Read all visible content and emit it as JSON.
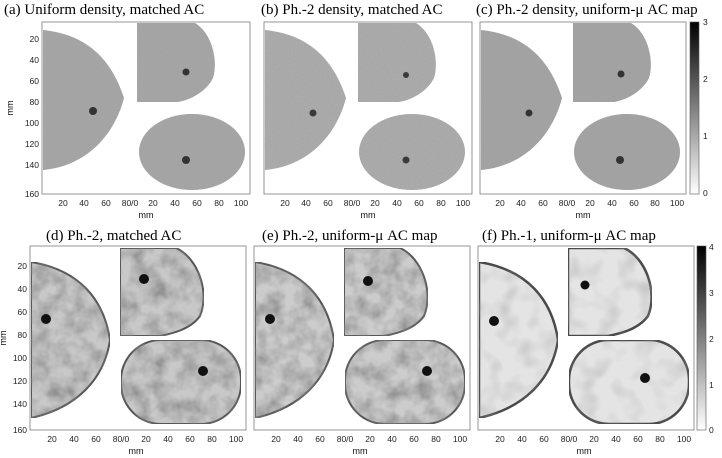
{
  "figure": {
    "panel_titles": [
      "(a) Uniform density, matched AC",
      "(b) Ph.-2 density, matched AC",
      "(c) Ph.-2 density, uniform-μ AC map",
      "(d) Ph.-2, matched AC",
      "(e) Ph.-2, uniform-μ AC map",
      "(f) Ph.-1, uniform-μ AC map"
    ],
    "x_axis_label": "mm",
    "y_axis_label": "mm",
    "x_tick_labels": [
      "20",
      "40",
      "60",
      "80/0",
      "20",
      "40",
      "60",
      "80",
      "100"
    ],
    "y_tick_labels": [
      "20",
      "40",
      "60",
      "80",
      "100",
      "120",
      "140",
      "160"
    ],
    "top_colorbar": {
      "min": 0,
      "max": 3,
      "tick_labels": [
        "3",
        "2",
        "1",
        "0"
      ]
    },
    "bottom_colorbar": {
      "min": 0,
      "max": 4,
      "tick_labels": [
        "4",
        "3",
        "2",
        "1",
        "0"
      ]
    },
    "colormap": "grayscale (0 = white, max = black)"
  }
}
